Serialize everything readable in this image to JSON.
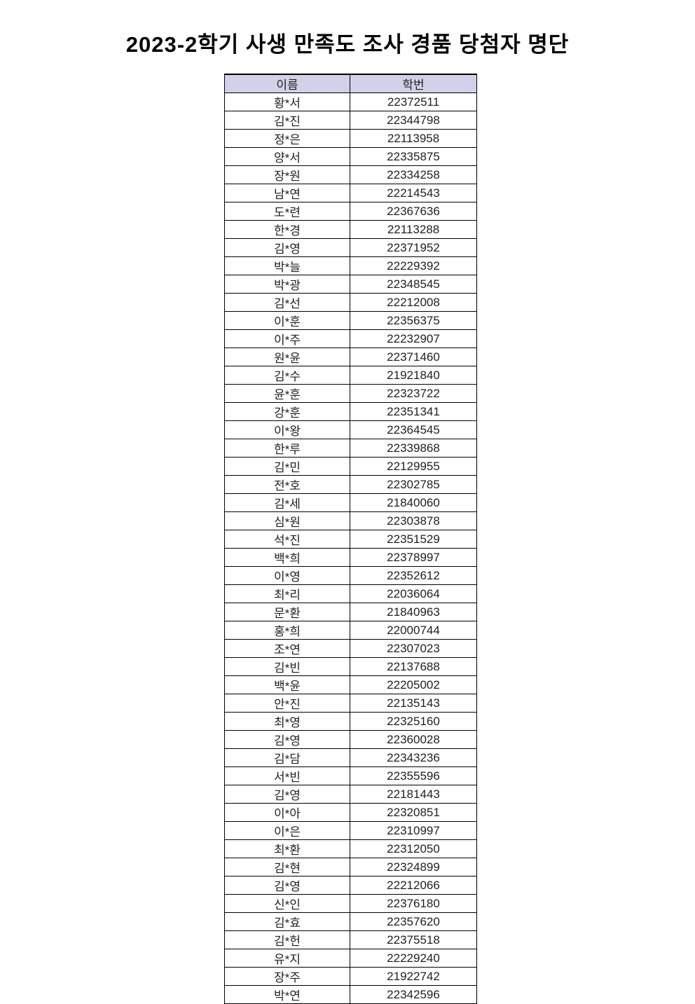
{
  "page": {
    "title": "2023-2학기 사생 만족도 조사 경품 당첨자 명단"
  },
  "colors": {
    "page_bg": "#ffffff",
    "header_bg": "#d1d1ea",
    "border": "#000000",
    "text": "#1f1f1f",
    "title": "#000000"
  },
  "table": {
    "columns": [
      {
        "key": "name",
        "label": "이름"
      },
      {
        "key": "student_id",
        "label": "학번"
      }
    ],
    "rows": [
      {
        "name": "황*서",
        "student_id": "22372511"
      },
      {
        "name": "김*진",
        "student_id": "22344798"
      },
      {
        "name": "정*은",
        "student_id": "22113958"
      },
      {
        "name": "양*서",
        "student_id": "22335875"
      },
      {
        "name": "장*원",
        "student_id": "22334258"
      },
      {
        "name": "남*연",
        "student_id": "22214543"
      },
      {
        "name": "도*련",
        "student_id": "22367636"
      },
      {
        "name": "한*경",
        "student_id": "22113288"
      },
      {
        "name": "김*영",
        "student_id": "22371952"
      },
      {
        "name": "박*늘",
        "student_id": "22229392"
      },
      {
        "name": "박*광",
        "student_id": "22348545"
      },
      {
        "name": "김*선",
        "student_id": "22212008"
      },
      {
        "name": "이*훈",
        "student_id": "22356375"
      },
      {
        "name": "이*주",
        "student_id": "22232907"
      },
      {
        "name": "원*윤",
        "student_id": "22371460"
      },
      {
        "name": "김*수",
        "student_id": "21921840"
      },
      {
        "name": "윤*훈",
        "student_id": "22323722"
      },
      {
        "name": "강*훈",
        "student_id": "22351341"
      },
      {
        "name": "이*왕",
        "student_id": "22364545"
      },
      {
        "name": "한*루",
        "student_id": "22339868"
      },
      {
        "name": "김*민",
        "student_id": "22129955"
      },
      {
        "name": "전*호",
        "student_id": "22302785"
      },
      {
        "name": "김*세",
        "student_id": "21840060"
      },
      {
        "name": "심*원",
        "student_id": "22303878"
      },
      {
        "name": "석*진",
        "student_id": "22351529"
      },
      {
        "name": "백*희",
        "student_id": "22378997"
      },
      {
        "name": "이*영",
        "student_id": "22352612"
      },
      {
        "name": "최*리",
        "student_id": "22036064"
      },
      {
        "name": "문*환",
        "student_id": "21840963"
      },
      {
        "name": "홍*희",
        "student_id": "22000744"
      },
      {
        "name": "조*연",
        "student_id": "22307023"
      },
      {
        "name": "김*빈",
        "student_id": "22137688"
      },
      {
        "name": "백*윤",
        "student_id": "22205002"
      },
      {
        "name": "안*진",
        "student_id": "22135143"
      },
      {
        "name": "최*영",
        "student_id": "22325160"
      },
      {
        "name": "김*영",
        "student_id": "22360028"
      },
      {
        "name": "김*담",
        "student_id": "22343236"
      },
      {
        "name": "서*빈",
        "student_id": "22355596"
      },
      {
        "name": "김*영",
        "student_id": "22181443"
      },
      {
        "name": "이*아",
        "student_id": "22320851"
      },
      {
        "name": "이*은",
        "student_id": "22310997"
      },
      {
        "name": "최*환",
        "student_id": "22312050"
      },
      {
        "name": "김*현",
        "student_id": "22324899"
      },
      {
        "name": "김*영",
        "student_id": "22212066"
      },
      {
        "name": "신*인",
        "student_id": "22376180"
      },
      {
        "name": "김*효",
        "student_id": "22357620"
      },
      {
        "name": "김*헌",
        "student_id": "22375518"
      },
      {
        "name": "유*지",
        "student_id": "22229240"
      },
      {
        "name": "장*주",
        "student_id": "21922742"
      },
      {
        "name": "박*연",
        "student_id": "22342596"
      }
    ]
  }
}
